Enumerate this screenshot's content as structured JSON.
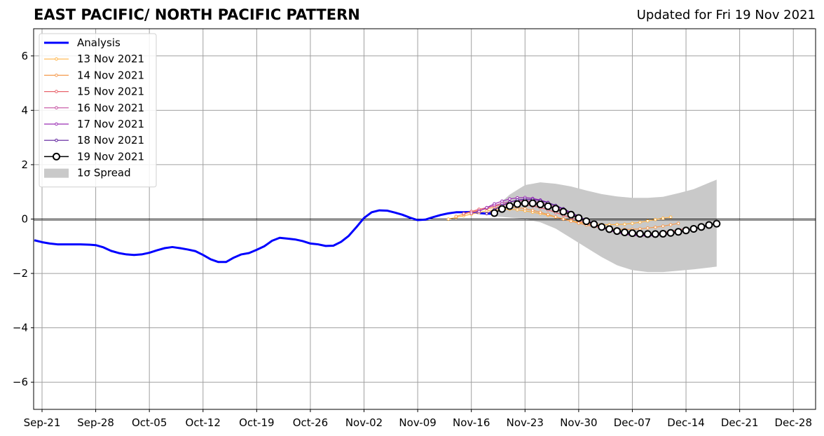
{
  "chart_data": {
    "type": "line",
    "title": "EAST PACIFIC/ NORTH PACIFIC PATTERN",
    "subtitle": "Updated for Fri 19 Nov 2021",
    "xlabel": "",
    "ylabel": "",
    "xlim": [
      "2021-09-21",
      "2022-01-01"
    ],
    "ylim": [
      -7,
      7
    ],
    "x_ticks": [
      "Sep-21",
      "Sep-28",
      "Oct-05",
      "Oct-12",
      "Oct-19",
      "Oct-26",
      "Nov-02",
      "Nov-09",
      "Nov-16",
      "Nov-23",
      "Nov-30",
      "Dec-07",
      "Dec-14",
      "Dec-21",
      "Dec-28"
    ],
    "y_ticks": [
      "6",
      "4",
      "2",
      "0",
      "−2",
      "−4",
      "−6"
    ],
    "grid": true,
    "legend_position": "top-left",
    "zero_line": 0,
    "analysis": {
      "name": "Analysis",
      "color": "#0000ff",
      "x": [
        "2021-09-20",
        "2021-09-21",
        "2021-09-22",
        "2021-09-23",
        "2021-09-24",
        "2021-09-25",
        "2021-09-26",
        "2021-09-27",
        "2021-09-28",
        "2021-09-29",
        "2021-09-30",
        "2021-10-01",
        "2021-10-02",
        "2021-10-03",
        "2021-10-04",
        "2021-10-05",
        "2021-10-06",
        "2021-10-07",
        "2021-10-08",
        "2021-10-09",
        "2021-10-10",
        "2021-10-11",
        "2021-10-12",
        "2021-10-13",
        "2021-10-14",
        "2021-10-15",
        "2021-10-16",
        "2021-10-17",
        "2021-10-18",
        "2021-10-19",
        "2021-10-20",
        "2021-10-21",
        "2021-10-22",
        "2021-10-23",
        "2021-10-24",
        "2021-10-25",
        "2021-10-26",
        "2021-10-27",
        "2021-10-28",
        "2021-10-29",
        "2021-10-30",
        "2021-10-31",
        "2021-11-01",
        "2021-11-02",
        "2021-11-03",
        "2021-11-04",
        "2021-11-05",
        "2021-11-06",
        "2021-11-07",
        "2021-11-08",
        "2021-11-09",
        "2021-11-10",
        "2021-11-11",
        "2021-11-12",
        "2021-11-13",
        "2021-11-14",
        "2021-11-15",
        "2021-11-16",
        "2021-11-17",
        "2021-11-18",
        "2021-11-19"
      ],
      "y": [
        -0.78,
        -0.85,
        -0.9,
        -0.93,
        -0.93,
        -0.93,
        -0.93,
        -0.94,
        -0.96,
        -1.04,
        -1.17,
        -1.25,
        -1.3,
        -1.32,
        -1.3,
        -1.24,
        -1.15,
        -1.07,
        -1.03,
        -1.07,
        -1.12,
        -1.18,
        -1.32,
        -1.48,
        -1.58,
        -1.58,
        -1.42,
        -1.3,
        -1.25,
        -1.13,
        -1.0,
        -0.8,
        -0.69,
        -0.72,
        -0.75,
        -0.81,
        -0.9,
        -0.93,
        -0.99,
        -0.98,
        -0.84,
        -0.62,
        -0.3,
        0.04,
        0.25,
        0.32,
        0.31,
        0.24,
        0.16,
        0.05,
        -0.04,
        -0.02,
        0.07,
        0.15,
        0.21,
        0.25,
        0.25,
        0.26,
        0.22,
        0.2,
        0.19
      ]
    },
    "series": [
      {
        "name": "13 Nov 2021",
        "color": "#ffb347",
        "x": [
          "2021-11-13",
          "2021-11-14",
          "2021-11-15",
          "2021-11-16",
          "2021-11-17",
          "2021-11-18",
          "2021-11-19",
          "2021-11-20",
          "2021-11-21",
          "2021-11-22",
          "2021-11-23",
          "2021-11-24",
          "2021-11-25",
          "2021-11-26",
          "2021-11-27",
          "2021-11-28",
          "2021-11-29",
          "2021-11-30",
          "2021-12-01",
          "2021-12-02",
          "2021-12-03",
          "2021-12-04",
          "2021-12-05",
          "2021-12-06",
          "2021-12-07",
          "2021-12-08",
          "2021-12-09",
          "2021-12-10",
          "2021-12-11",
          "2021-12-12"
        ],
        "y": [
          0.0,
          0.06,
          0.12,
          0.18,
          0.24,
          0.3,
          0.34,
          0.36,
          0.36,
          0.34,
          0.3,
          0.25,
          0.2,
          0.14,
          0.07,
          0.0,
          -0.06,
          -0.12,
          -0.16,
          -0.19,
          -0.2,
          -0.21,
          -0.2,
          -0.19,
          -0.16,
          -0.12,
          -0.07,
          -0.02,
          0.03,
          0.07
        ]
      },
      {
        "name": "14 Nov 2021",
        "color": "#f59a4f",
        "x": [
          "2021-11-14",
          "2021-11-15",
          "2021-11-16",
          "2021-11-17",
          "2021-11-18",
          "2021-11-19",
          "2021-11-20",
          "2021-11-21",
          "2021-11-22",
          "2021-11-23",
          "2021-11-24",
          "2021-11-25",
          "2021-11-26",
          "2021-11-27",
          "2021-11-28",
          "2021-11-29",
          "2021-11-30",
          "2021-12-01",
          "2021-12-02",
          "2021-12-03",
          "2021-12-04",
          "2021-12-05",
          "2021-12-06",
          "2021-12-07",
          "2021-12-08",
          "2021-12-09",
          "2021-12-10",
          "2021-12-11",
          "2021-12-12",
          "2021-12-13"
        ],
        "y": [
          0.1,
          0.18,
          0.26,
          0.32,
          0.38,
          0.42,
          0.44,
          0.44,
          0.42,
          0.38,
          0.32,
          0.25,
          0.17,
          0.08,
          0.0,
          -0.08,
          -0.15,
          -0.22,
          -0.28,
          -0.32,
          -0.35,
          -0.37,
          -0.38,
          -0.38,
          -0.36,
          -0.33,
          -0.3,
          -0.26,
          -0.21,
          -0.16
        ]
      },
      {
        "name": "15 Nov 2021",
        "color": "#e8636b",
        "x": [
          "2021-11-15",
          "2021-11-16",
          "2021-11-17",
          "2021-11-18",
          "2021-11-19",
          "2021-11-20",
          "2021-11-21",
          "2021-11-22",
          "2021-11-23",
          "2021-11-24",
          "2021-11-25",
          "2021-11-26",
          "2021-11-27",
          "2021-11-28",
          "2021-11-29",
          "2021-11-30",
          "2021-12-01",
          "2021-12-02",
          "2021-12-03",
          "2021-12-04",
          "2021-12-05",
          "2021-12-06",
          "2021-12-07",
          "2021-12-08",
          "2021-12-09",
          "2021-12-10",
          "2021-12-11",
          "2021-12-12",
          "2021-12-13",
          "2021-12-14"
        ],
        "y": [
          0.2,
          0.28,
          0.36,
          0.42,
          0.48,
          0.52,
          0.54,
          0.54,
          0.52,
          0.48,
          0.42,
          0.34,
          0.24,
          0.14,
          0.04,
          -0.06,
          -0.16,
          -0.26,
          -0.34,
          -0.41,
          -0.46,
          -0.5,
          -0.53,
          -0.54,
          -0.54,
          -0.52,
          -0.49,
          -0.45,
          -0.4,
          -0.35
        ]
      },
      {
        "name": "16 Nov 2021",
        "color": "#c44fa1",
        "x": [
          "2021-11-16",
          "2021-11-17",
          "2021-11-18",
          "2021-11-19",
          "2021-11-20",
          "2021-11-21",
          "2021-11-22",
          "2021-11-23",
          "2021-11-24",
          "2021-11-25",
          "2021-11-26",
          "2021-11-27",
          "2021-11-28",
          "2021-11-29",
          "2021-11-30",
          "2021-12-01",
          "2021-12-02",
          "2021-12-03",
          "2021-12-04",
          "2021-12-05",
          "2021-12-06",
          "2021-12-07",
          "2021-12-08",
          "2021-12-09",
          "2021-12-10",
          "2021-12-11",
          "2021-12-12",
          "2021-12-13",
          "2021-12-14",
          "2021-12-15"
        ],
        "y": [
          0.22,
          0.3,
          0.4,
          0.5,
          0.58,
          0.64,
          0.67,
          0.68,
          0.66,
          0.61,
          0.54,
          0.44,
          0.32,
          0.2,
          0.07,
          -0.06,
          -0.18,
          -0.3,
          -0.4,
          -0.48,
          -0.55,
          -0.59,
          -0.61,
          -0.62,
          -0.61,
          -0.58,
          -0.54,
          -0.49,
          -0.43,
          -0.37
        ]
      },
      {
        "name": "17 Nov 2021",
        "color": "#9a2fb3",
        "x": [
          "2021-11-17",
          "2021-11-18",
          "2021-11-19",
          "2021-11-20",
          "2021-11-21",
          "2021-11-22",
          "2021-11-23",
          "2021-11-24",
          "2021-11-25",
          "2021-11-26",
          "2021-11-27",
          "2021-11-28",
          "2021-11-29",
          "2021-11-30",
          "2021-12-01",
          "2021-12-02",
          "2021-12-03",
          "2021-12-04",
          "2021-12-05",
          "2021-12-06",
          "2021-12-07",
          "2021-12-08",
          "2021-12-09",
          "2021-12-10",
          "2021-12-11",
          "2021-12-12",
          "2021-12-13",
          "2021-12-14",
          "2021-12-15",
          "2021-12-16"
        ],
        "y": [
          0.28,
          0.42,
          0.56,
          0.66,
          0.74,
          0.78,
          0.79,
          0.76,
          0.7,
          0.61,
          0.49,
          0.36,
          0.22,
          0.07,
          -0.07,
          -0.2,
          -0.32,
          -0.42,
          -0.5,
          -0.56,
          -0.6,
          -0.62,
          -0.62,
          -0.61,
          -0.58,
          -0.54,
          -0.49,
          -0.43,
          -0.37,
          -0.31
        ]
      },
      {
        "name": "18 Nov 2021",
        "color": "#5a1a9a",
        "x": [
          "2021-11-18",
          "2021-11-19",
          "2021-11-20",
          "2021-11-21",
          "2021-11-22",
          "2021-11-23",
          "2021-11-24",
          "2021-11-25",
          "2021-11-26",
          "2021-11-27",
          "2021-11-28",
          "2021-11-29",
          "2021-11-30",
          "2021-12-01",
          "2021-12-02",
          "2021-12-03",
          "2021-12-04",
          "2021-12-05",
          "2021-12-06",
          "2021-12-07",
          "2021-12-08",
          "2021-12-09",
          "2021-12-10",
          "2021-12-11",
          "2021-12-12",
          "2021-12-13",
          "2021-12-14",
          "2021-12-15",
          "2021-12-16",
          "2021-12-17"
        ],
        "y": [
          0.2,
          0.34,
          0.5,
          0.62,
          0.7,
          0.73,
          0.72,
          0.68,
          0.6,
          0.5,
          0.38,
          0.24,
          0.1,
          -0.04,
          -0.17,
          -0.29,
          -0.39,
          -0.47,
          -0.53,
          -0.57,
          -0.59,
          -0.6,
          -0.59,
          -0.56,
          -0.52,
          -0.47,
          -0.42,
          -0.36,
          -0.3,
          -0.25
        ]
      },
      {
        "name": "19 Nov 2021",
        "color": "#000000",
        "marker": "open-circle",
        "x": [
          "2021-11-19",
          "2021-11-20",
          "2021-11-21",
          "2021-11-22",
          "2021-11-23",
          "2021-11-24",
          "2021-11-25",
          "2021-11-26",
          "2021-11-27",
          "2021-11-28",
          "2021-11-29",
          "2021-11-30",
          "2021-12-01",
          "2021-12-02",
          "2021-12-03",
          "2021-12-04",
          "2021-12-05",
          "2021-12-06",
          "2021-12-07",
          "2021-12-08",
          "2021-12-09",
          "2021-12-10",
          "2021-12-11",
          "2021-12-12",
          "2021-12-13",
          "2021-12-14",
          "2021-12-15",
          "2021-12-16",
          "2021-12-17",
          "2021-12-18"
        ],
        "y": [
          0.22,
          0.37,
          0.48,
          0.55,
          0.58,
          0.58,
          0.54,
          0.47,
          0.38,
          0.27,
          0.16,
          0.04,
          -0.08,
          -0.19,
          -0.29,
          -0.37,
          -0.44,
          -0.49,
          -0.52,
          -0.54,
          -0.55,
          -0.55,
          -0.54,
          -0.51,
          -0.47,
          -0.42,
          -0.36,
          -0.29,
          -0.22,
          -0.17
        ]
      }
    ],
    "spread": {
      "name": "1σ Spread",
      "color": "#c9c9c9",
      "x": [
        "2021-11-19",
        "2021-11-21",
        "2021-11-23",
        "2021-11-25",
        "2021-11-27",
        "2021-11-29",
        "2021-12-01",
        "2021-12-03",
        "2021-12-05",
        "2021-12-07",
        "2021-12-09",
        "2021-12-11",
        "2021-12-13",
        "2021-12-15",
        "2021-12-18"
      ],
      "upper": [
        0.4,
        0.9,
        1.25,
        1.35,
        1.3,
        1.2,
        1.05,
        0.92,
        0.83,
        0.78,
        0.78,
        0.82,
        0.95,
        1.1,
        1.45
      ],
      "lower": [
        0.1,
        0.05,
        0.0,
        -0.12,
        -0.35,
        -0.7,
        -1.05,
        -1.4,
        -1.7,
        -1.88,
        -1.95,
        -1.95,
        -1.9,
        -1.85,
        -1.75
      ]
    }
  }
}
